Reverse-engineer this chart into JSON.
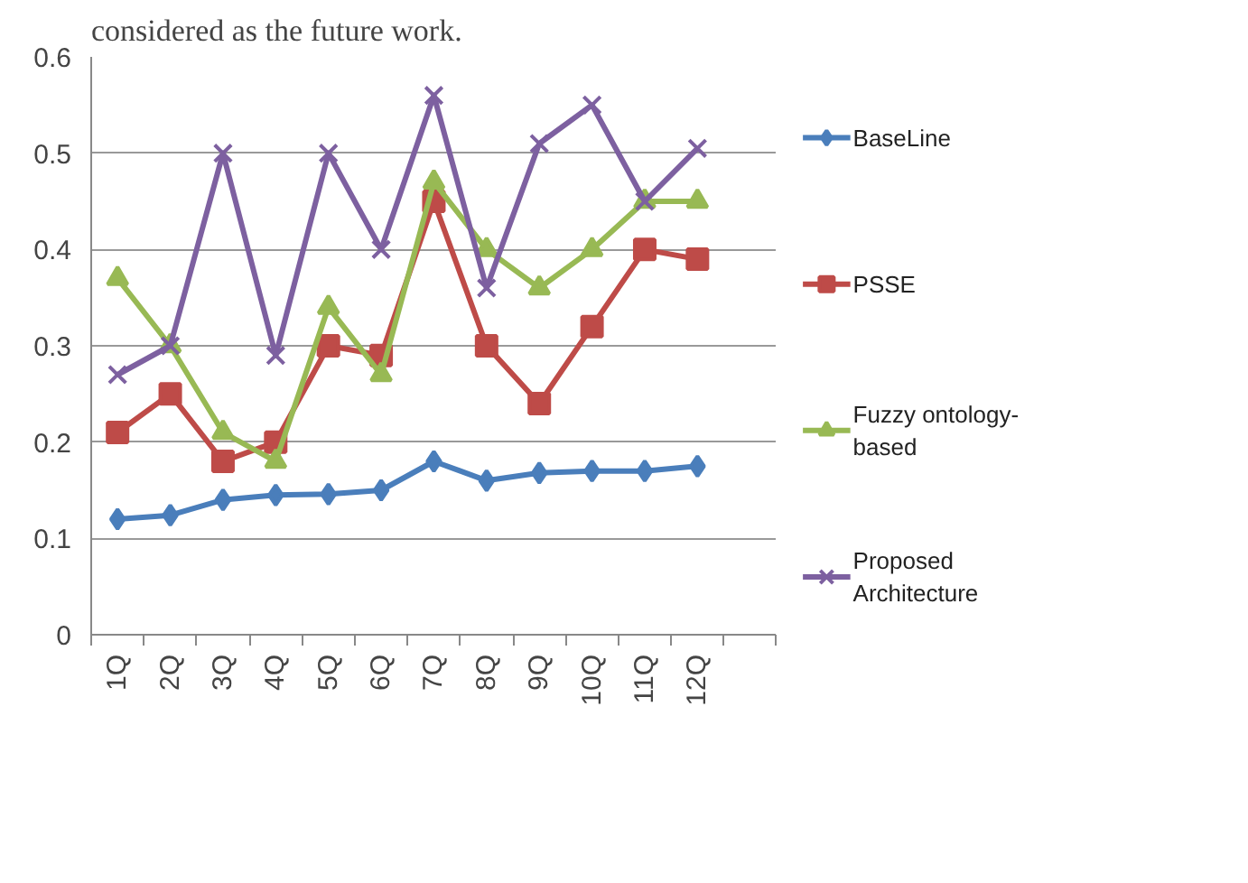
{
  "chart_data": {
    "type": "line",
    "annotations": [
      "considered as the future work."
    ],
    "categories": [
      "1Q",
      "2Q",
      "3Q",
      "4Q",
      "5Q",
      "6Q",
      "7Q",
      "8Q",
      "9Q",
      "10Q",
      "11Q",
      "12Q",
      null
    ],
    "series": [
      {
        "name": "BaseLine",
        "color": "#4a7ebb",
        "marker": "diamond",
        "values": [
          0.12,
          0.124,
          0.14,
          0.145,
          0.146,
          0.15,
          0.18,
          0.16,
          0.168,
          0.17,
          0.17,
          0.175,
          null
        ]
      },
      {
        "name": "PSSE",
        "color": "#be4b48",
        "marker": "square",
        "values": [
          0.21,
          0.25,
          0.18,
          0.2,
          0.3,
          0.29,
          0.45,
          0.3,
          0.24,
          0.32,
          0.4,
          0.39,
          null
        ]
      },
      {
        "name": "Fuzzy ontology-based",
        "color": "#98b954",
        "marker": "triangle",
        "values": [
          0.37,
          0.3,
          0.21,
          0.18,
          0.34,
          0.27,
          0.47,
          0.4,
          0.36,
          0.4,
          0.45,
          0.45,
          null
        ]
      },
      {
        "name": "Proposed Architecture",
        "color": "#7d60a0",
        "marker": "cross",
        "values": [
          0.27,
          0.3,
          0.5,
          0.29,
          0.5,
          0.4,
          0.56,
          0.36,
          0.51,
          0.55,
          0.45,
          0.505,
          null
        ]
      }
    ],
    "ylim": [
      0,
      0.6
    ],
    "yticks": [
      0,
      0.1,
      0.2,
      0.3,
      0.4,
      0.5,
      0.6
    ],
    "grid": "y",
    "legend": "right",
    "line_style": "solid"
  }
}
